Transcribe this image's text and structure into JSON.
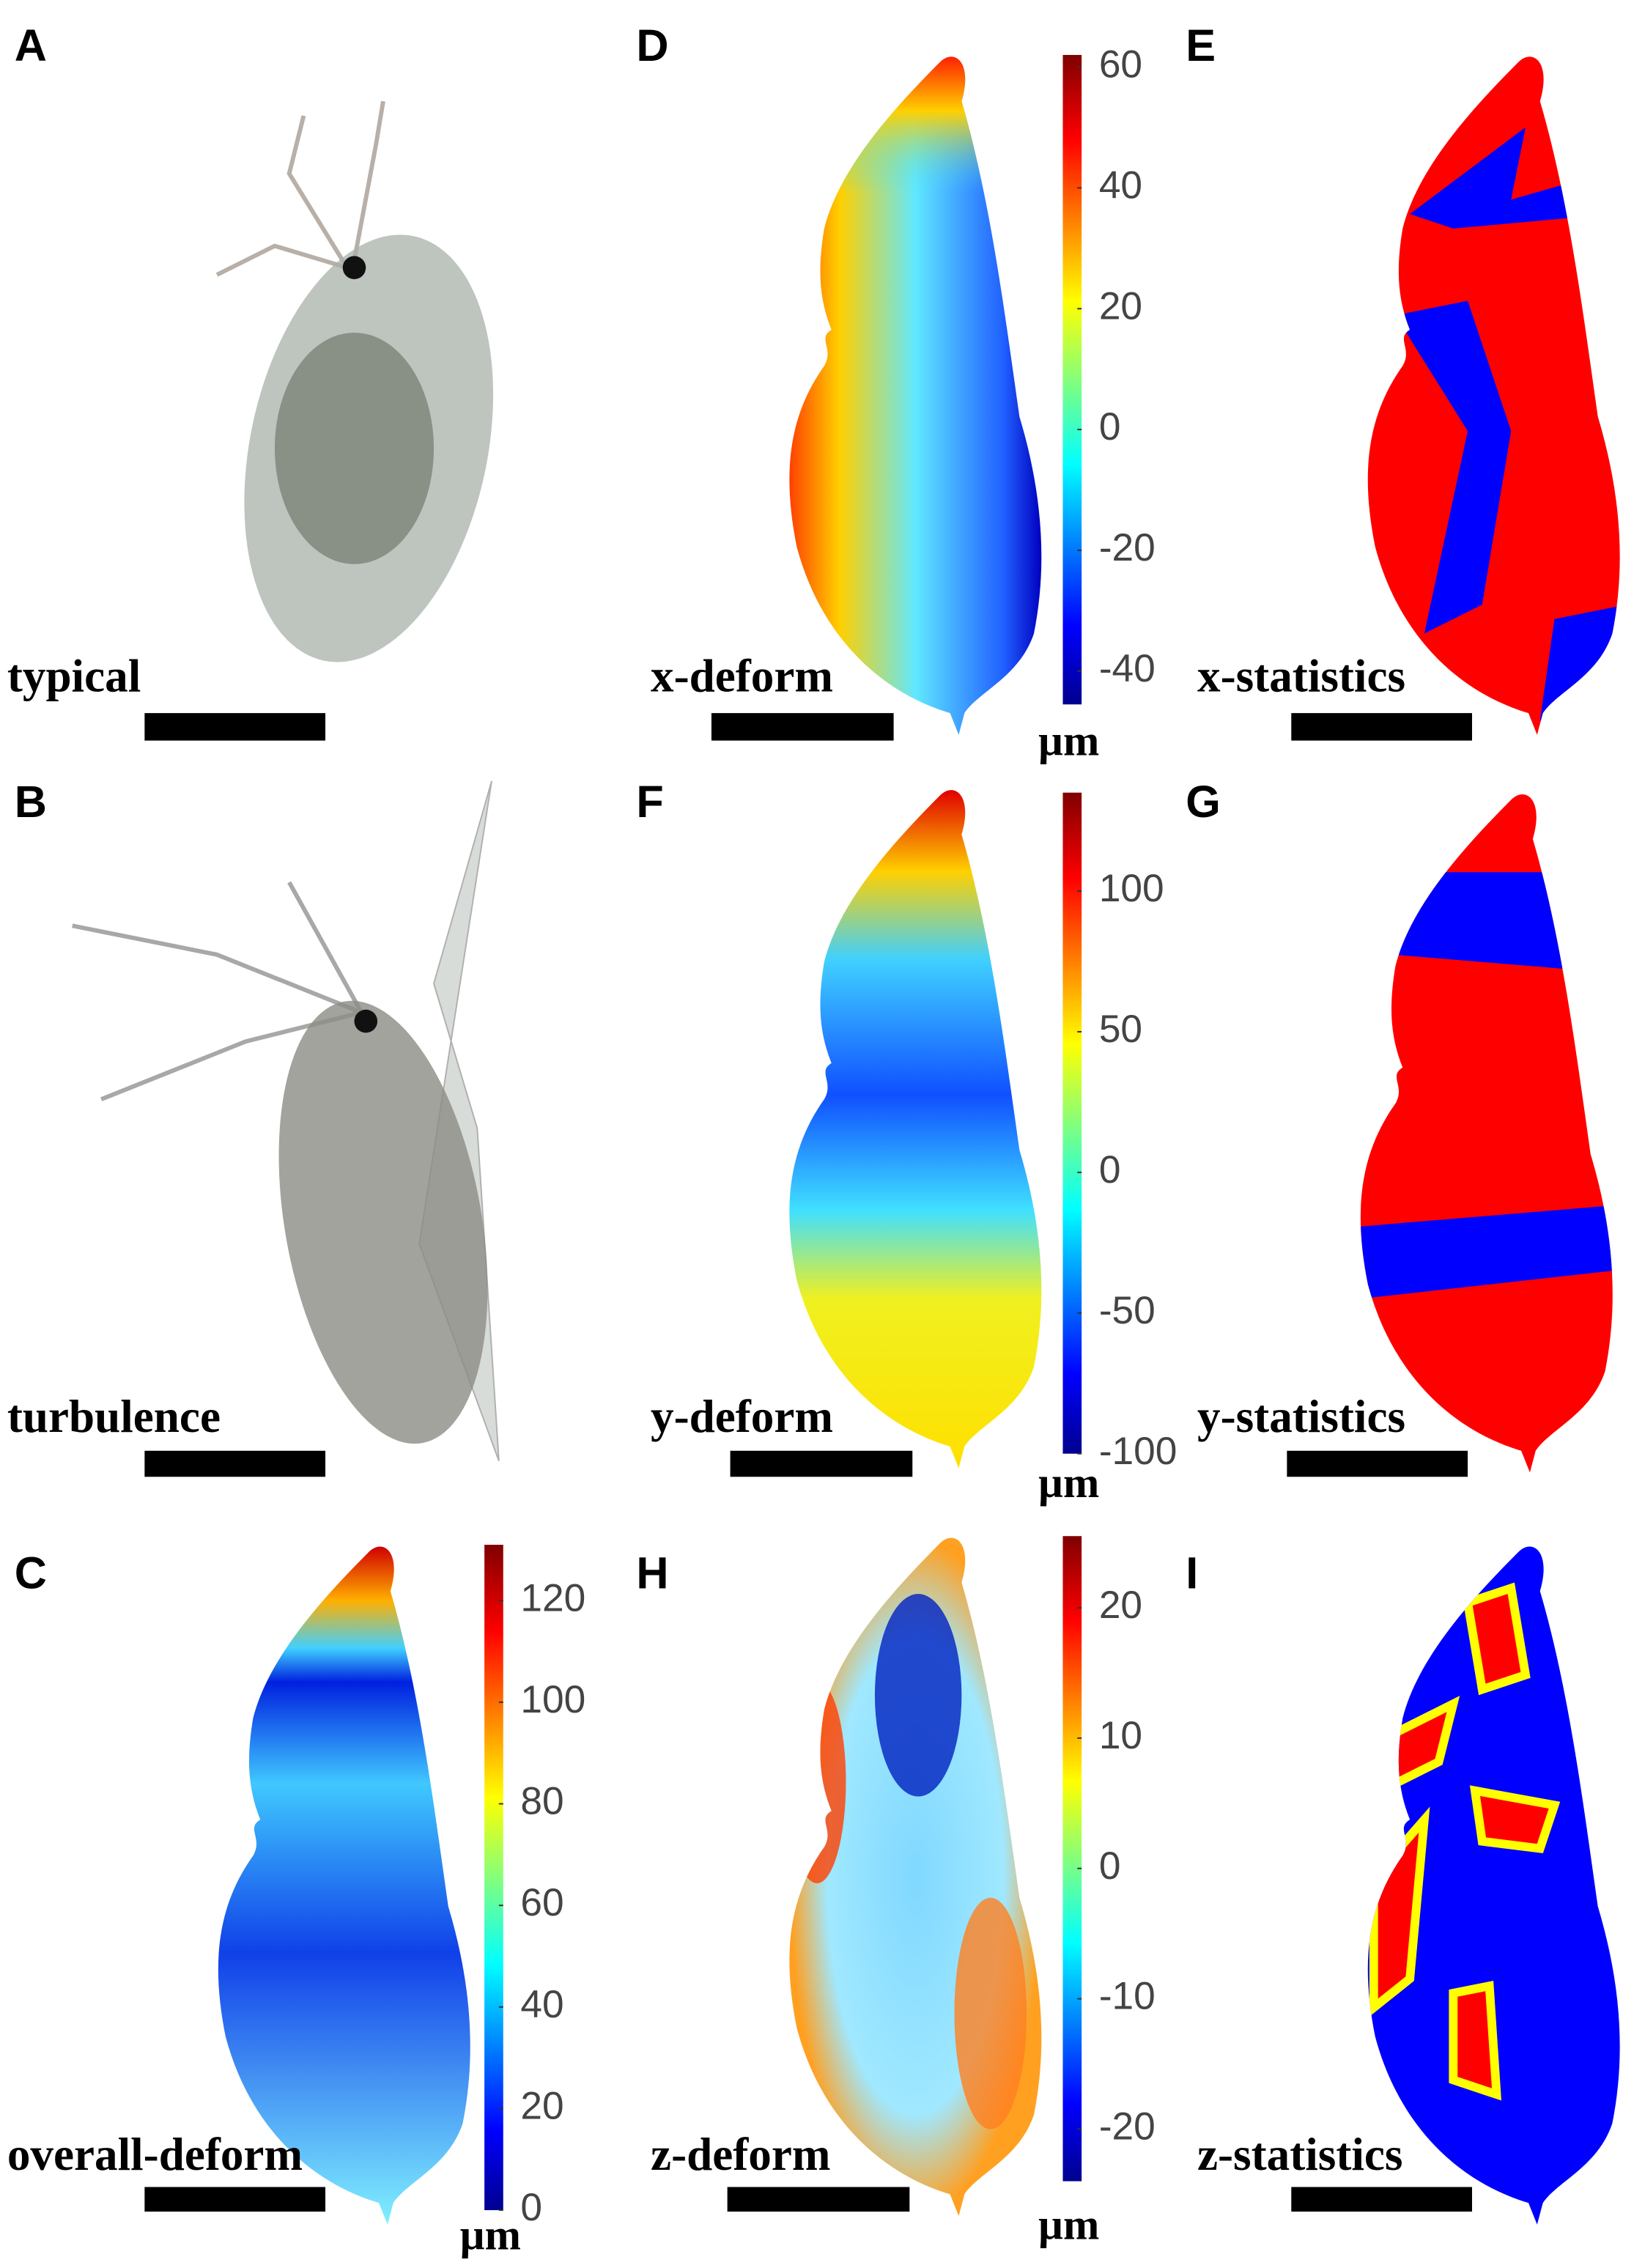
{
  "panels": [
    {
      "letter": "A",
      "label": "typical"
    },
    {
      "letter": "B",
      "label": "turbulence"
    },
    {
      "letter": "C",
      "label": "overall-deform",
      "colorbar": {
        "lim": [
          0,
          131
        ],
        "ticks": [
          0,
          20,
          40,
          60,
          80,
          100,
          120
        ],
        "unit": "µm"
      }
    },
    {
      "letter": "D",
      "label": "x-deform",
      "colorbar": {
        "lim": [
          -45.5,
          62
        ],
        "ticks": [
          -40,
          -20,
          0,
          20,
          40,
          60
        ],
        "unit": "µm"
      }
    },
    {
      "letter": "E",
      "label": "x-statistics"
    },
    {
      "letter": "F",
      "label": "y-deform",
      "colorbar": {
        "lim": [
          -100,
          135
        ],
        "ticks": [
          -100,
          -50,
          0,
          50,
          100
        ],
        "unit": "µm"
      }
    },
    {
      "letter": "G",
      "label": "y-statistics"
    },
    {
      "letter": "H",
      "label": "z-deform",
      "colorbar": {
        "lim": [
          -24,
          25.5
        ],
        "ticks": [
          -20,
          -10,
          0,
          10,
          20
        ],
        "unit": "µm"
      }
    },
    {
      "letter": "I",
      "label": "z-statistics"
    }
  ]
}
